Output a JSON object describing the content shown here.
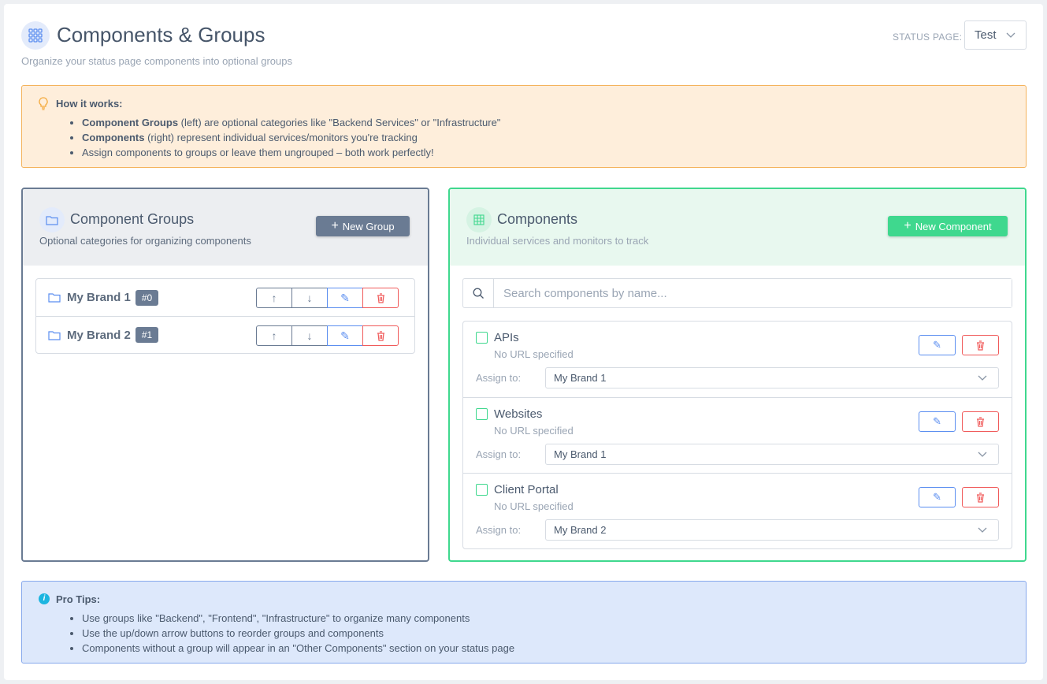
{
  "header": {
    "title": "Components & Groups",
    "subtitle": "Organize your status page components into optional groups",
    "status_page_label": "STATUS PAGE:",
    "status_page_value": "Test"
  },
  "how_it_works": {
    "title": "How it works:",
    "items": [
      {
        "bold": "Component Groups",
        "text": " (left) are optional categories like \"Backend Services\" or \"Infrastructure\""
      },
      {
        "bold": "Components",
        "text": " (right) represent individual services/monitors you're tracking"
      },
      {
        "bold": "",
        "text": "Assign components to groups or leave them ungrouped – both work perfectly!"
      }
    ]
  },
  "groups_panel": {
    "title": "Component Groups",
    "subtitle": "Optional categories for organizing components",
    "new_label": "New Group",
    "groups": [
      {
        "name": "My Brand 1",
        "badge": "#0"
      },
      {
        "name": "My Brand 2",
        "badge": "#1"
      }
    ]
  },
  "components_panel": {
    "title": "Components",
    "subtitle": "Individual services and monitors to track",
    "new_label": "New Component",
    "search_placeholder": "Search components by name...",
    "assign_label": "Assign to:",
    "components": [
      {
        "name": "APIs",
        "url": "No URL specified",
        "group": "My Brand 1"
      },
      {
        "name": "Websites",
        "url": "No URL specified",
        "group": "My Brand 1"
      },
      {
        "name": "Client Portal",
        "url": "No URL specified",
        "group": "My Brand 2"
      }
    ]
  },
  "pro_tips": {
    "title": "Pro Tips:",
    "items": [
      "Use groups like \"Backend\", \"Frontend\", \"Infrastructure\" to organize many components",
      "Use the up/down arrow buttons to reorder groups and components",
      "Components without a group will appear in an \"Other Components\" section on your status page"
    ]
  },
  "colors": {
    "accent_blue": "#5b8ef0",
    "accent_green": "#3fd88e",
    "danger": "#f05a5a",
    "slate": "#6a7b93"
  }
}
